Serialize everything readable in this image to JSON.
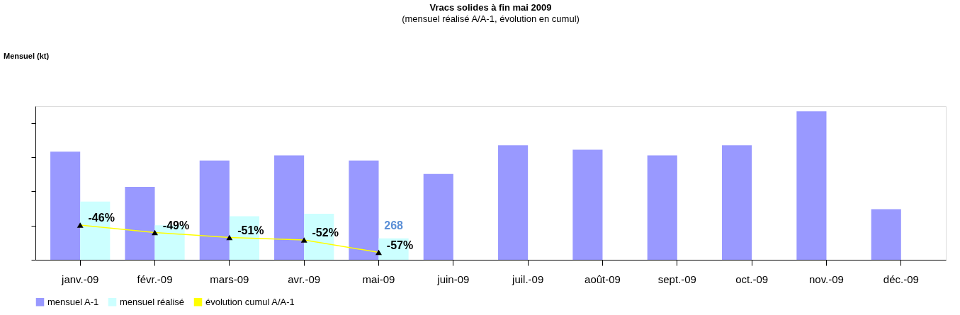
{
  "chart_data": {
    "type": "bar",
    "title": "Vracs solides à fin mai 2009",
    "subtitle": "(mensuel réalisé A/A-1, évolution en cumul)",
    "annotations": [
      "Mensuel (kt)"
    ],
    "categories": [
      "janv.-09",
      "févr.-09",
      "mars-09",
      "avr.-09",
      "mai-09",
      "juin-09",
      "juil.-09",
      "août-09",
      "sept.-09",
      "oct.-09",
      "nov.-09",
      "déc.-09"
    ],
    "ylim": [
      0,
      1920
    ],
    "yticks": [
      {
        "value": 0,
        "label": null
      },
      {
        "value": 428,
        "label": null
      },
      {
        "value": 856,
        "label": null
      },
      {
        "value": 1284,
        "label": null
      },
      {
        "value": 1712,
        "label": null
      }
    ],
    "series": [
      {
        "name": "mensuel A-1",
        "color": "#9999ff",
        "values": [
          1352,
          912,
          1240,
          1304,
          1240,
          1072,
          1432,
          1376,
          1304,
          1432,
          1856,
          632
        ]
      },
      {
        "name": "mensuel réalisé",
        "color": "#ccffff",
        "values": [
          728,
          432,
          544,
          576,
          268,
          null,
          null,
          null,
          null,
          null,
          null,
          null
        ],
        "value_labels": [
          null,
          null,
          null,
          null,
          "268",
          null,
          null,
          null,
          null,
          null,
          null,
          null
        ]
      },
      {
        "name": "évolution cumul A/A-1",
        "type": "line",
        "axis": "y2",
        "color": "#ffff00",
        "marker": "triangle",
        "values": [
          -46,
          -49,
          -51,
          -52,
          -57,
          null,
          null,
          null,
          null,
          null,
          null,
          null
        ],
        "value_labels": [
          "-46%",
          "-49%",
          "-51%",
          "-52%",
          "-57%",
          null,
          null,
          null,
          null,
          null,
          null,
          null
        ]
      }
    ],
    "y2lim": [
      -60,
      2
    ],
    "legend": "bottom"
  }
}
